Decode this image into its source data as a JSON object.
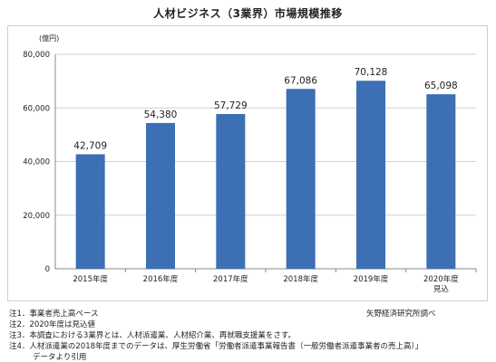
{
  "title": "人材ビジネス（3業界）市場規模推移",
  "chart_data": {
    "type": "bar",
    "unit_label": "(億円)",
    "categories": [
      "2015年度",
      "2016年度",
      "2017年度",
      "2018年度",
      "2019年度",
      "2020年度\n見込"
    ],
    "values": [
      42709,
      54380,
      57729,
      67086,
      70128,
      65098
    ],
    "value_labels": [
      "42,709",
      "54,380",
      "57,729",
      "67,086",
      "70,128",
      "65,098"
    ],
    "ylim": [
      0,
      80000
    ],
    "yticks": [
      0,
      20000,
      40000,
      60000,
      80000
    ],
    "ytick_labels": [
      "0",
      "20,000",
      "40,000",
      "60,000",
      "80,000"
    ],
    "grid": true,
    "bar_color": "#3c6fb4"
  },
  "notes": [
    "注1．事業者売上高ベース",
    "注2．2020年度は見込値",
    "注3．本調査における3業界とは、人材派遣業、人材紹介業、再就職支援業をさす。",
    "注4．人材派遣業の2018年度までのデータは、厚生労働省「労働者派遣事業報告書（一般労働者派遣事業者の売上高）」",
    "データより引用"
  ],
  "credit": "矢野経済研究所調べ"
}
